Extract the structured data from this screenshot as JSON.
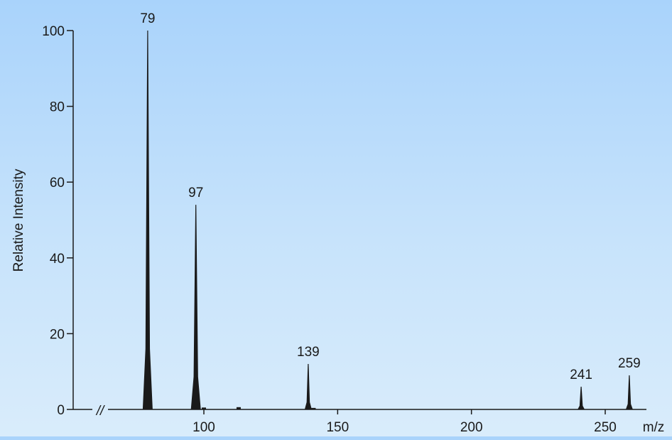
{
  "chart_data": {
    "type": "bar",
    "title": "",
    "xlabel": "m/z",
    "ylabel": "Relative Intensity",
    "xlim": [
      60,
      265
    ],
    "ylim": [
      0,
      100
    ],
    "axis_break_label": "//",
    "x_ticks": [
      {
        "value": 100,
        "label": "100"
      },
      {
        "value": 150,
        "label": "150"
      },
      {
        "value": 200,
        "label": "200"
      },
      {
        "value": 250,
        "label": "250"
      }
    ],
    "y_ticks": [
      {
        "value": 0,
        "label": "0"
      },
      {
        "value": 20,
        "label": "20"
      },
      {
        "value": 40,
        "label": "40"
      },
      {
        "value": 60,
        "label": "60"
      },
      {
        "value": 80,
        "label": "80"
      },
      {
        "value": 100,
        "label": "100"
      }
    ],
    "peaks": [
      {
        "mz": 79,
        "intensity": 100,
        "label": "79"
      },
      {
        "mz": 97,
        "intensity": 54,
        "label": "97"
      },
      {
        "mz": 139,
        "intensity": 12,
        "label": "139"
      },
      {
        "mz": 241,
        "intensity": 6,
        "label": "241"
      },
      {
        "mz": 259,
        "intensity": 9,
        "label": "259"
      }
    ],
    "minor_peaks": [
      {
        "mz": 100,
        "intensity": 0.5
      },
      {
        "mz": 113,
        "intensity": 0.6
      },
      {
        "mz": 141,
        "intensity": 0.4
      }
    ],
    "colors": {
      "peak": "#1a1a1a",
      "axis": "#1a1a1a",
      "background_top": "#a9d3fb",
      "background_bottom": "#d9ecfb"
    },
    "grid": false,
    "legend": "none"
  }
}
